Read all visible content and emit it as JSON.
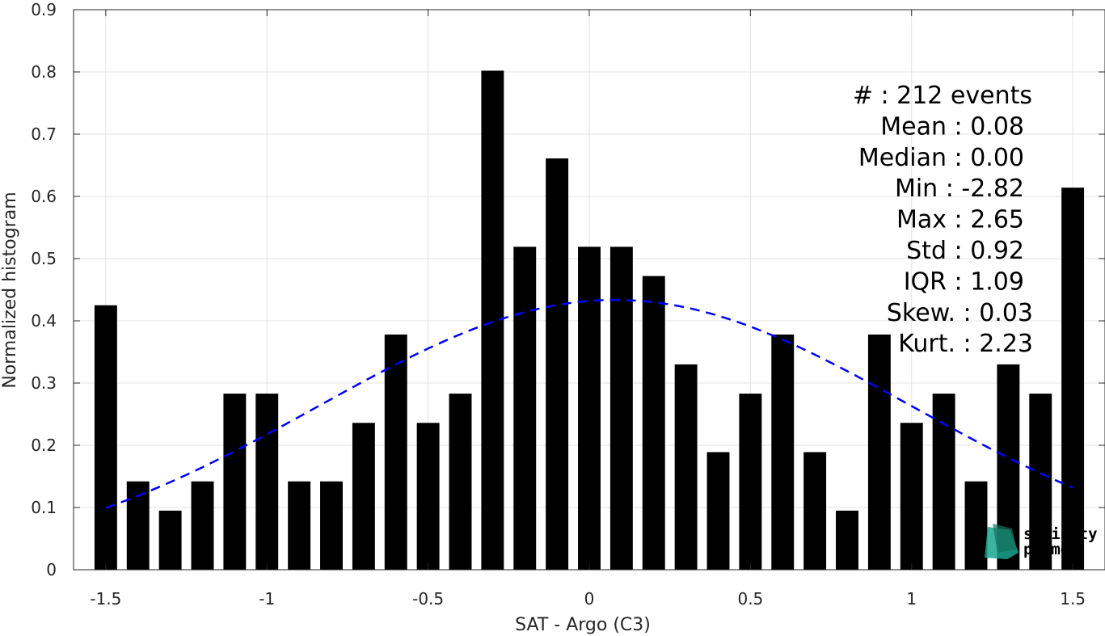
{
  "chart_data": {
    "type": "bar",
    "xlabel": "SAT - Argo (C3)",
    "ylabel": "Normalized histogram",
    "xlim": [
      -1.6,
      1.6
    ],
    "ylim": [
      0,
      0.9
    ],
    "xticks": [
      -1.5,
      -1,
      -0.5,
      0,
      0.5,
      1,
      1.5
    ],
    "xtick_labels": [
      "-1.5",
      "-1",
      "-0.5",
      "0",
      "0.5",
      "1",
      "1.5"
    ],
    "yticks": [
      0,
      0.1,
      0.2,
      0.3,
      0.4,
      0.5,
      0.6,
      0.7,
      0.8,
      0.9
    ],
    "ytick_labels": [
      "0",
      "0.1",
      "0.2",
      "0.3",
      "0.4",
      "0.5",
      "0.6",
      "0.7",
      "0.8",
      "0.9"
    ],
    "grid": true,
    "bar_color": "#000000",
    "bar_width": 0.07,
    "x": [
      -1.5,
      -1.4,
      -1.3,
      -1.2,
      -1.1,
      -1.0,
      -0.9,
      -0.8,
      -0.7,
      -0.6,
      -0.5,
      -0.4,
      -0.3,
      -0.2,
      -0.1,
      0.0,
      0.1,
      0.2,
      0.3,
      0.4,
      0.5,
      0.6,
      0.7,
      0.8,
      0.9,
      1.0,
      1.1,
      1.2,
      1.3,
      1.4,
      1.5
    ],
    "values": [
      0.425,
      0.142,
      0.095,
      0.142,
      0.283,
      0.283,
      0.142,
      0.142,
      0.236,
      0.378,
      0.236,
      0.283,
      0.802,
      0.519,
      0.661,
      0.519,
      0.519,
      0.472,
      0.33,
      0.189,
      0.283,
      0.378,
      0.189,
      0.095,
      0.378,
      0.236,
      0.283,
      0.142,
      0.33,
      0.283,
      0.614
    ],
    "fit": {
      "type": "gaussian",
      "color": "#0000ff",
      "style": "dashed",
      "mean": 0.08,
      "std": 0.92,
      "x_range": [
        -1.5,
        1.5
      ]
    },
    "annotations": [
      "#  : 212 events",
      "Mean : 0.08",
      "Median : 0.00",
      "Min : -2.82",
      "Max : 2.65",
      "Std : 0.92",
      "IQR : 1.09",
      "Skew. : 0.03",
      "Kurt. : 2.23"
    ]
  },
  "logo": {
    "line1": "salinity",
    "line2": "pi-mep",
    "color1": "#1aa58f",
    "color2": "#17705f"
  }
}
